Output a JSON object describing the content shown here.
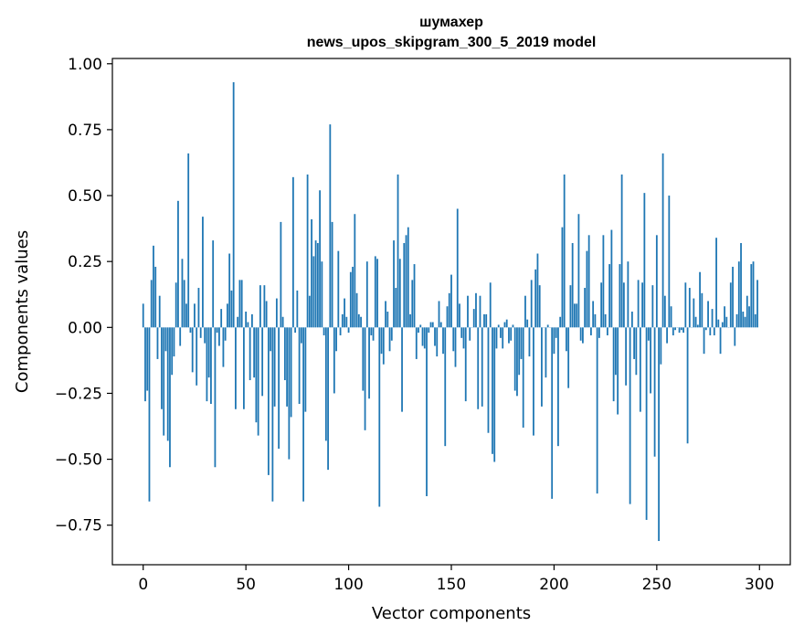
{
  "chart_data": {
    "type": "bar",
    "title_line1": "шумахер",
    "title_line2": "news_upos_skipgram_300_5_2019 model",
    "xlabel": "Vector components",
    "ylabel": "Components values",
    "xlim": [
      -15,
      315
    ],
    "ylim": [
      -0.9,
      1.02
    ],
    "xticks": [
      0,
      50,
      100,
      150,
      200,
      250,
      300
    ],
    "xtick_labels": [
      "0",
      "50",
      "100",
      "150",
      "200",
      "250",
      "300"
    ],
    "yticks": [
      -0.75,
      -0.5,
      -0.25,
      0.0,
      0.25,
      0.5,
      0.75,
      1.0
    ],
    "ytick_labels": [
      "−0.75",
      "−0.50",
      "−0.25",
      "0.00",
      "0.25",
      "0.50",
      "0.75",
      "1.00"
    ],
    "bar_color": "#1f77b4",
    "grid": false,
    "values": [
      0.09,
      -0.28,
      -0.24,
      -0.66,
      0.18,
      0.31,
      0.23,
      -0.12,
      0.12,
      -0.31,
      -0.41,
      -0.09,
      -0.43,
      -0.53,
      -0.18,
      -0.11,
      0.17,
      0.48,
      -0.07,
      0.26,
      0.18,
      0.09,
      0.66,
      -0.02,
      -0.17,
      0.09,
      -0.22,
      0.15,
      -0.04,
      0.42,
      -0.06,
      -0.28,
      -0.19,
      -0.29,
      0.33,
      -0.53,
      -0.02,
      -0.07,
      0.07,
      -0.15,
      -0.05,
      0.09,
      0.28,
      0.14,
      0.93,
      -0.31,
      0.04,
      0.18,
      0.18,
      -0.31,
      0.06,
      0.02,
      -0.2,
      0.05,
      -0.19,
      -0.36,
      -0.41,
      0.16,
      -0.26,
      0.16,
      0.1,
      -0.56,
      -0.09,
      -0.66,
      -0.3,
      0.11,
      -0.46,
      0.4,
      0.04,
      -0.2,
      -0.3,
      -0.5,
      -0.34,
      0.57,
      -0.02,
      0.14,
      -0.29,
      -0.06,
      -0.66,
      -0.32,
      0.58,
      0.12,
      0.41,
      0.27,
      0.33,
      0.32,
      0.52,
      0.25,
      -0.03,
      -0.43,
      -0.54,
      0.77,
      0.4,
      -0.25,
      -0.09,
      0.29,
      -0.03,
      0.05,
      0.11,
      0.04,
      -0.02,
      0.21,
      0.23,
      0.43,
      0.13,
      0.05,
      0.04,
      -0.24,
      -0.39,
      0.25,
      -0.27,
      -0.03,
      -0.05,
      0.27,
      0.26,
      -0.68,
      -0.1,
      -0.14,
      0.1,
      0.06,
      -0.09,
      -0.05,
      0.33,
      0.15,
      0.58,
      0.26,
      -0.32,
      0.32,
      0.35,
      0.38,
      0.05,
      0.18,
      0.24,
      -0.12,
      -0.02,
      0.01,
      -0.07,
      -0.08,
      -0.64,
      -0.02,
      0.02,
      0.02,
      -0.07,
      -0.11,
      0.1,
      0.02,
      -0.1,
      -0.45,
      0.08,
      0.13,
      0.2,
      -0.09,
      -0.15,
      0.45,
      0.09,
      -0.04,
      -0.08,
      -0.28,
      0.12,
      -0.05,
      0.0,
      0.07,
      0.13,
      -0.31,
      0.12,
      -0.3,
      0.05,
      0.05,
      -0.4,
      0.17,
      -0.48,
      -0.51,
      -0.08,
      0.01,
      -0.04,
      -0.08,
      0.02,
      0.03,
      -0.06,
      -0.05,
      0.01,
      -0.24,
      -0.26,
      -0.18,
      -0.12,
      -0.38,
      0.12,
      0.03,
      -0.11,
      0.18,
      -0.41,
      0.22,
      0.28,
      0.16,
      -0.3,
      0.0,
      -0.19,
      0.01,
      0.0,
      -0.65,
      -0.1,
      -0.04,
      -0.45,
      0.04,
      0.38,
      0.58,
      -0.09,
      -0.23,
      0.16,
      0.32,
      0.09,
      0.09,
      0.43,
      -0.05,
      -0.06,
      0.15,
      0.29,
      0.35,
      -0.03,
      0.1,
      0.05,
      -0.63,
      -0.04,
      0.17,
      0.35,
      0.05,
      -0.03,
      0.24,
      0.37,
      -0.28,
      -0.18,
      -0.33,
      0.24,
      0.58,
      0.17,
      -0.22,
      0.25,
      -0.67,
      0.06,
      -0.12,
      -0.18,
      0.18,
      -0.32,
      0.17,
      0.51,
      -0.73,
      -0.05,
      -0.25,
      0.16,
      -0.49,
      0.35,
      -0.81,
      -0.14,
      0.66,
      0.12,
      -0.06,
      0.5,
      0.08,
      -0.03,
      -0.01,
      0.0,
      -0.02,
      -0.01,
      -0.02,
      0.17,
      -0.44,
      0.15,
      0.0,
      0.11,
      0.04,
      0.01,
      0.21,
      0.13,
      -0.1,
      -0.01,
      0.1,
      -0.03,
      0.07,
      -0.03,
      0.34,
      0.03,
      -0.1,
      0.02,
      0.08,
      0.04,
      0.0,
      0.17,
      0.23,
      -0.07,
      0.05,
      0.25,
      0.32,
      0.06,
      0.04,
      0.12,
      0.08,
      0.24,
      0.25,
      0.05,
      0.18
    ]
  }
}
